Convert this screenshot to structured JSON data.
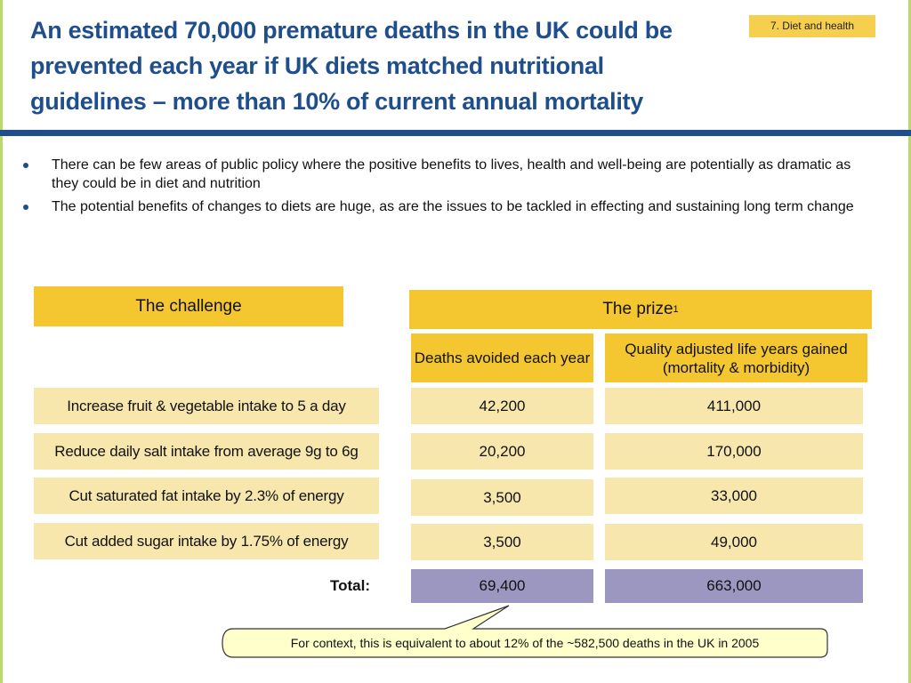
{
  "title": "An estimated 70,000 premature deaths in the UK could be prevented each year if UK diets matched nutritional guidelines – more than 10% of current annual mortality",
  "section_tag": "7. Diet and health",
  "bullets": [
    "There can be few areas of public policy where the positive benefits to lives, health and well-being are potentially as dramatic as they could be in diet and nutrition",
    "The potential benefits of changes to diets are huge, as are the issues to be tackled in effecting and sustaining long term change"
  ],
  "table": {
    "challenge_header": "The challenge",
    "prize_header": "The prize",
    "prize_footnote": "1",
    "col1_header": "Deaths avoided each year",
    "col2_header": "Quality adjusted life years gained (mortality & morbidity)",
    "rows": [
      {
        "label": "Increase fruit & vegetable intake to 5 a day",
        "deaths": "42,200",
        "qaly": "411,000"
      },
      {
        "label": "Reduce daily salt intake from average 9g to 6g",
        "deaths": "20,200",
        "qaly": "170,000"
      },
      {
        "label": "Cut saturated fat intake by 2.3% of energy",
        "deaths": "3,500",
        "qaly": "33,000"
      },
      {
        "label": "Cut added sugar intake by 1.75% of energy",
        "deaths": "3,500",
        "qaly": "49,000"
      }
    ],
    "total_label": "Total:",
    "total_deaths": "69,400",
    "total_qaly": "663,000"
  },
  "callout": "For context, this is equivalent to about 12% of the ~582,500 deaths in the UK in 2005",
  "colors": {
    "title_blue": "#1f4e8c",
    "gold": "#f4c730",
    "light_gold": "#f8e7ad",
    "purple": "#9b97c0",
    "callout_fill": "#ffffcc"
  }
}
